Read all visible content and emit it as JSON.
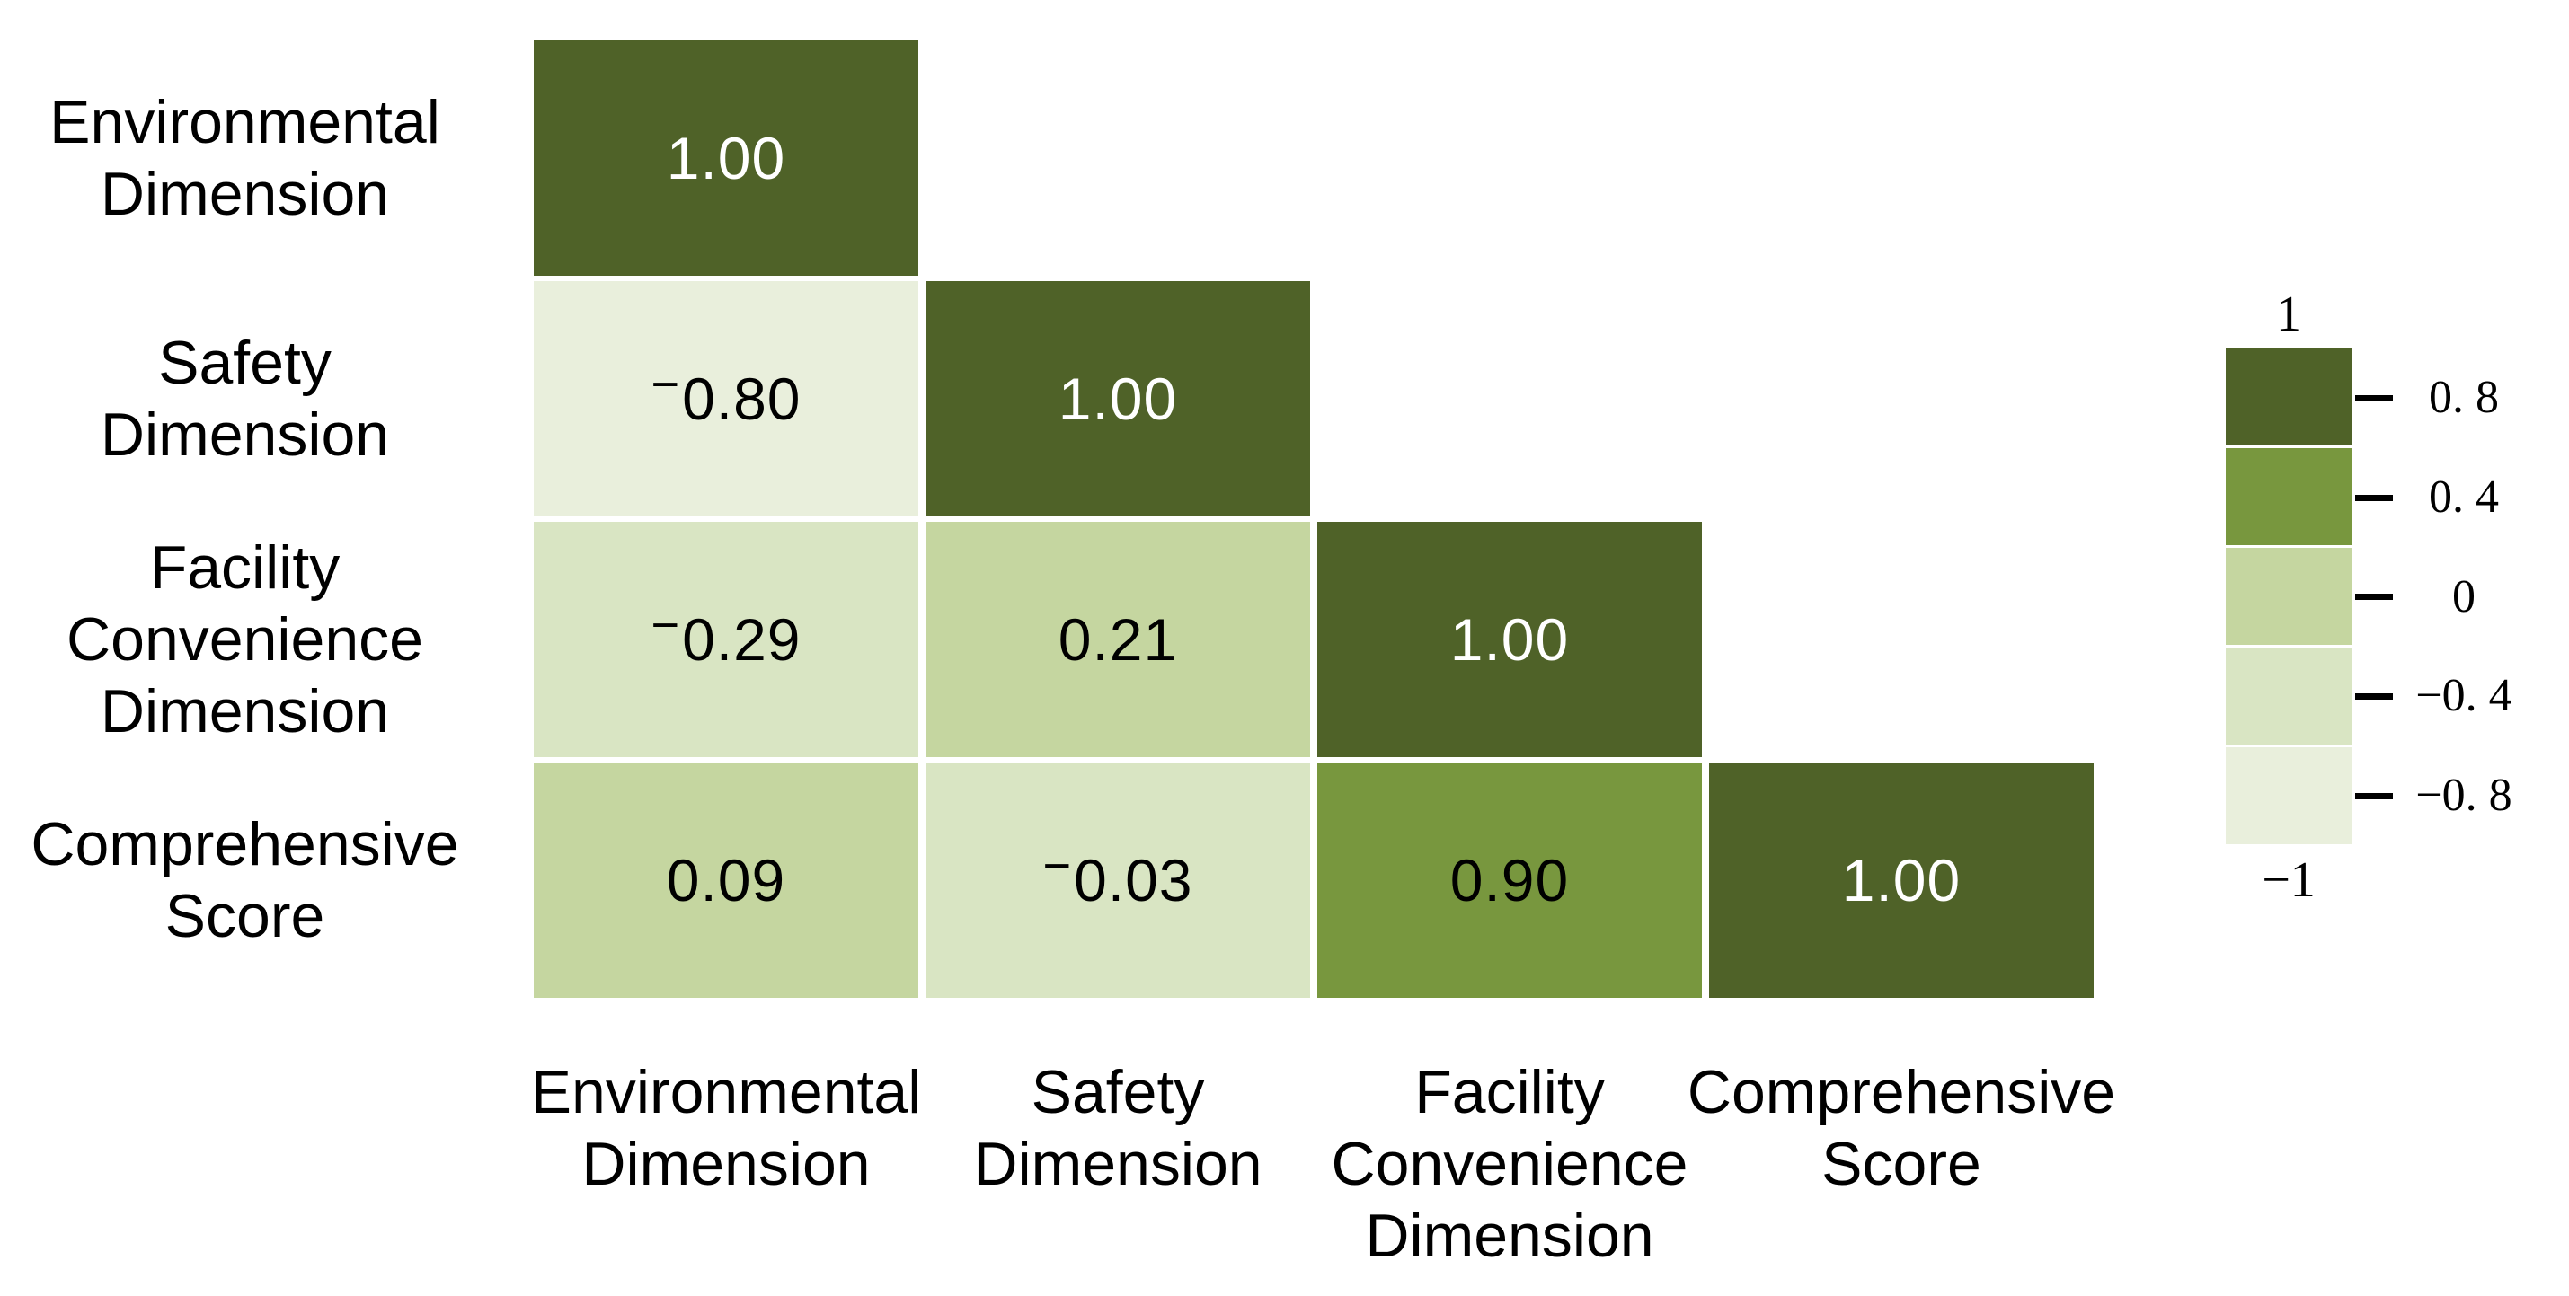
{
  "figure": {
    "background": "#ffffff",
    "description": "Lower-triangular correlation heatmap with discrete green colorbar"
  },
  "chart_data": {
    "type": "heatmap",
    "title": "",
    "xlabel": "",
    "ylabel": "",
    "categories": [
      "Environmental Dimension",
      "Safety Dimension",
      "Facility Convenience Dimension",
      "Comprehensive Score"
    ],
    "row_label_lines": [
      [
        "Environmental",
        "Dimension"
      ],
      [
        "Safety",
        "Dimension"
      ],
      [
        "Facility",
        "Convenience",
        "Dimension"
      ],
      [
        "Comprehensive",
        "Score"
      ]
    ],
    "col_label_lines": [
      [
        "Environmental",
        "Dimension"
      ],
      [
        "Safety",
        "Dimension"
      ],
      [
        "Facility",
        "Convenience",
        "Dimension"
      ],
      [
        "Comprehensive",
        "Score"
      ]
    ],
    "matrix": [
      [
        1.0
      ],
      [
        -0.8,
        1.0
      ],
      [
        -0.29,
        0.21,
        1.0
      ],
      [
        0.09,
        -0.03,
        0.9,
        1.0
      ]
    ],
    "cell_labels": [
      [
        "1.00"
      ],
      [
        "−0.80",
        "1.00"
      ],
      [
        "−0.29",
        "0.21",
        "1.00"
      ],
      [
        "0.09",
        "−0.03",
        "0.90",
        "1.00"
      ]
    ],
    "cell_color_keys": [
      [
        "c1"
      ],
      [
        "c5",
        "c1"
      ],
      [
        "c4",
        "c3",
        "c1"
      ],
      [
        "c3",
        "c4",
        "c2",
        "c1"
      ]
    ],
    "value_range": [
      -1,
      1
    ],
    "grid": false,
    "legend_position": "right",
    "colorbar": {
      "top_label": "1",
      "tick_labels": [
        "0. 8",
        "0. 4",
        "0",
        "−0. 4",
        "−0. 8"
      ],
      "bottom_label": "−1",
      "segment_color_keys": [
        "c1",
        "c2",
        "c3",
        "c4",
        "c5"
      ]
    }
  },
  "palette": {
    "c1": "#4f6228",
    "c2": "#78973e",
    "c3": "#c5d6a0",
    "c4": "#d9e5c3",
    "c5": "#e9efdc",
    "cell_text_on_dark": "#ffffff",
    "cell_text_on_light": "#000000",
    "label_text": "#000000",
    "tick_color": "#000000"
  },
  "dark_keys_with_white_text": [
    "c1"
  ]
}
